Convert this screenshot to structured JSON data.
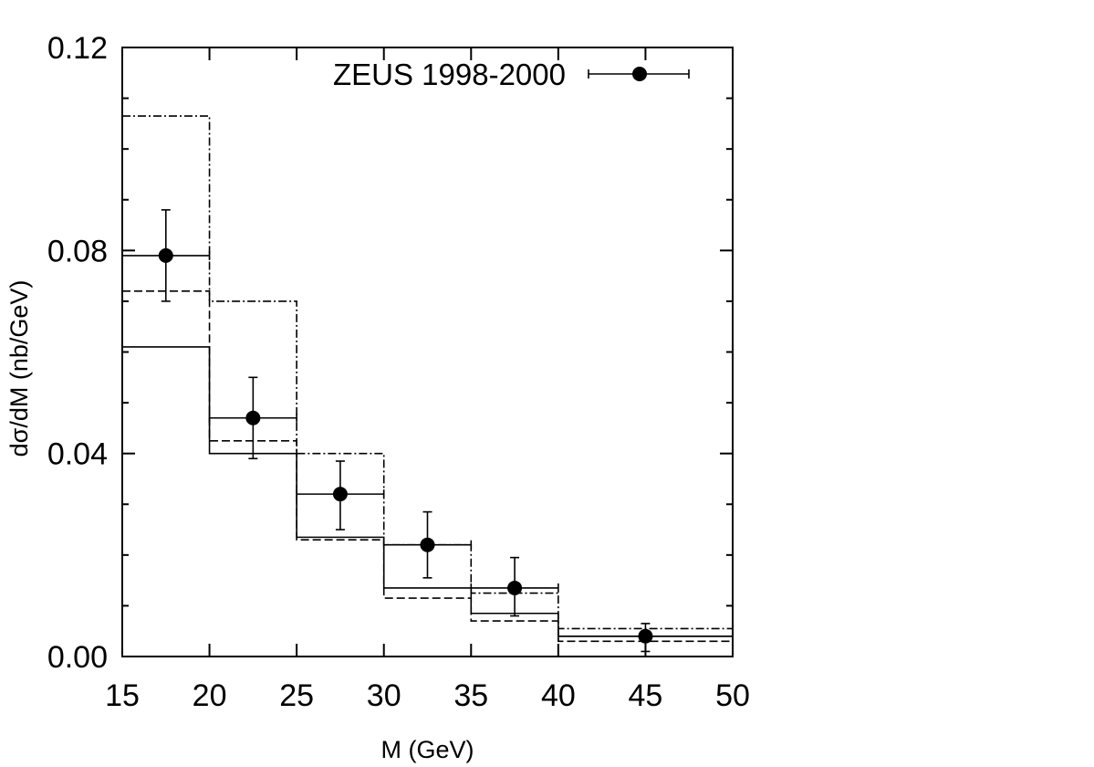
{
  "chart_data": {
    "type": "scatter",
    "xlabel": "M (GeV)",
    "ylabel": "dσ/dM (nb/GeV)",
    "xlim": [
      15,
      50
    ],
    "ylim": [
      0,
      0.12
    ],
    "x_ticks": [
      "15",
      "20",
      "25",
      "30",
      "35",
      "40",
      "45",
      "50"
    ],
    "y_ticks": [
      "0.00",
      "0.04",
      "0.08",
      "0.12"
    ],
    "grid": false,
    "legend_position": "top",
    "bin_edges": [
      15,
      20,
      25,
      30,
      35,
      40,
      50
    ],
    "series": [
      {
        "name": "ZEUS 1998-2000",
        "kind": "points",
        "x": [
          17.5,
          22.5,
          27.5,
          32.5,
          37.5,
          45
        ],
        "y": [
          0.079,
          0.047,
          0.032,
          0.022,
          0.0135,
          0.004
        ],
        "x_err_low": [
          2.5,
          2.5,
          2.5,
          2.5,
          2.5,
          5
        ],
        "x_err_high": [
          2.5,
          2.5,
          2.5,
          2.5,
          2.5,
          5
        ],
        "y_err_low": [
          0.009,
          0.008,
          0.007,
          0.0065,
          0.0055,
          0.003
        ],
        "y_err_high": [
          0.009,
          0.008,
          0.0065,
          0.0065,
          0.006,
          0.0025
        ]
      },
      {
        "kind": "histogram",
        "line_style": "solid",
        "values": [
          0.061,
          0.04,
          0.0235,
          0.0135,
          0.0085,
          0.004
        ]
      },
      {
        "kind": "histogram",
        "line_style": "dashed",
        "values": [
          0.072,
          0.0425,
          0.023,
          0.0115,
          0.007,
          0.003
        ]
      },
      {
        "kind": "histogram",
        "line_style": "dash-dot",
        "values": [
          0.1065,
          0.07,
          0.04,
          0.022,
          0.0125,
          0.0055
        ]
      }
    ]
  }
}
